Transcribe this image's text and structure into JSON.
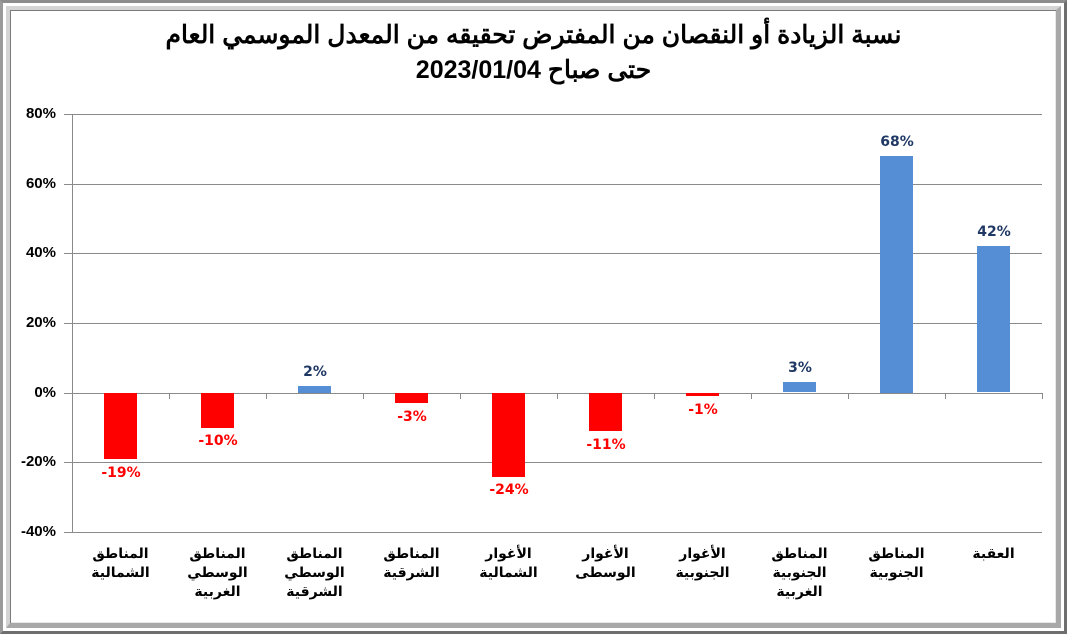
{
  "chart_data": {
    "type": "bar",
    "title": "نسبة الزيادة أو النقصان من المفترض تحقيقه من المعدل الموسمي العام",
    "subtitle": "حتى صباح 2023/01/04",
    "xlabel": "",
    "ylabel": "",
    "ylim": [
      -0.4,
      0.8
    ],
    "yticks": [
      "80%",
      "60%",
      "40%",
      "20%",
      "0%",
      "-20%",
      "-40%"
    ],
    "grid": true,
    "legend": "none",
    "categories": [
      "المناطق الشمالية",
      "المناطق الوسطي الغربية",
      "المناطق الوسطي الشرقية",
      "المناطق الشرقية",
      "الأغوار الشمالية",
      "الأغوار الوسطى",
      "الأغوار الجنوبية",
      "المناطق الجنوبية الغربية",
      "المناطق الجنوبية",
      "العقبة"
    ],
    "category_lines": [
      [
        "المناطق",
        "الشمالية"
      ],
      [
        "المناطق",
        "الوسطي",
        "الغربية"
      ],
      [
        "المناطق",
        "الوسطي",
        "الشرقية"
      ],
      [
        "المناطق",
        "الشرقية"
      ],
      [
        "الأغوار",
        "الشمالية"
      ],
      [
        "الأغوار",
        "الوسطى"
      ],
      [
        "الأغوار",
        "الجنوبية"
      ],
      [
        "المناطق",
        "الجنوبية",
        "الغربية"
      ],
      [
        "المناطق",
        "الجنوبية"
      ],
      [
        "العقبة"
      ]
    ],
    "values": [
      -19,
      -10,
      2,
      -3,
      -24,
      -11,
      -1,
      3,
      68,
      42
    ],
    "value_labels": [
      "-19%",
      "-10%",
      "2%",
      "-3%",
      "-24%",
      "-11%",
      "-1%",
      "3%",
      "68%",
      "42%"
    ],
    "colors": {
      "positive_bar": "#558ED5",
      "negative_bar": "#FF0000",
      "positive_label": "#1F3864",
      "negative_label": "#FF0000"
    }
  }
}
